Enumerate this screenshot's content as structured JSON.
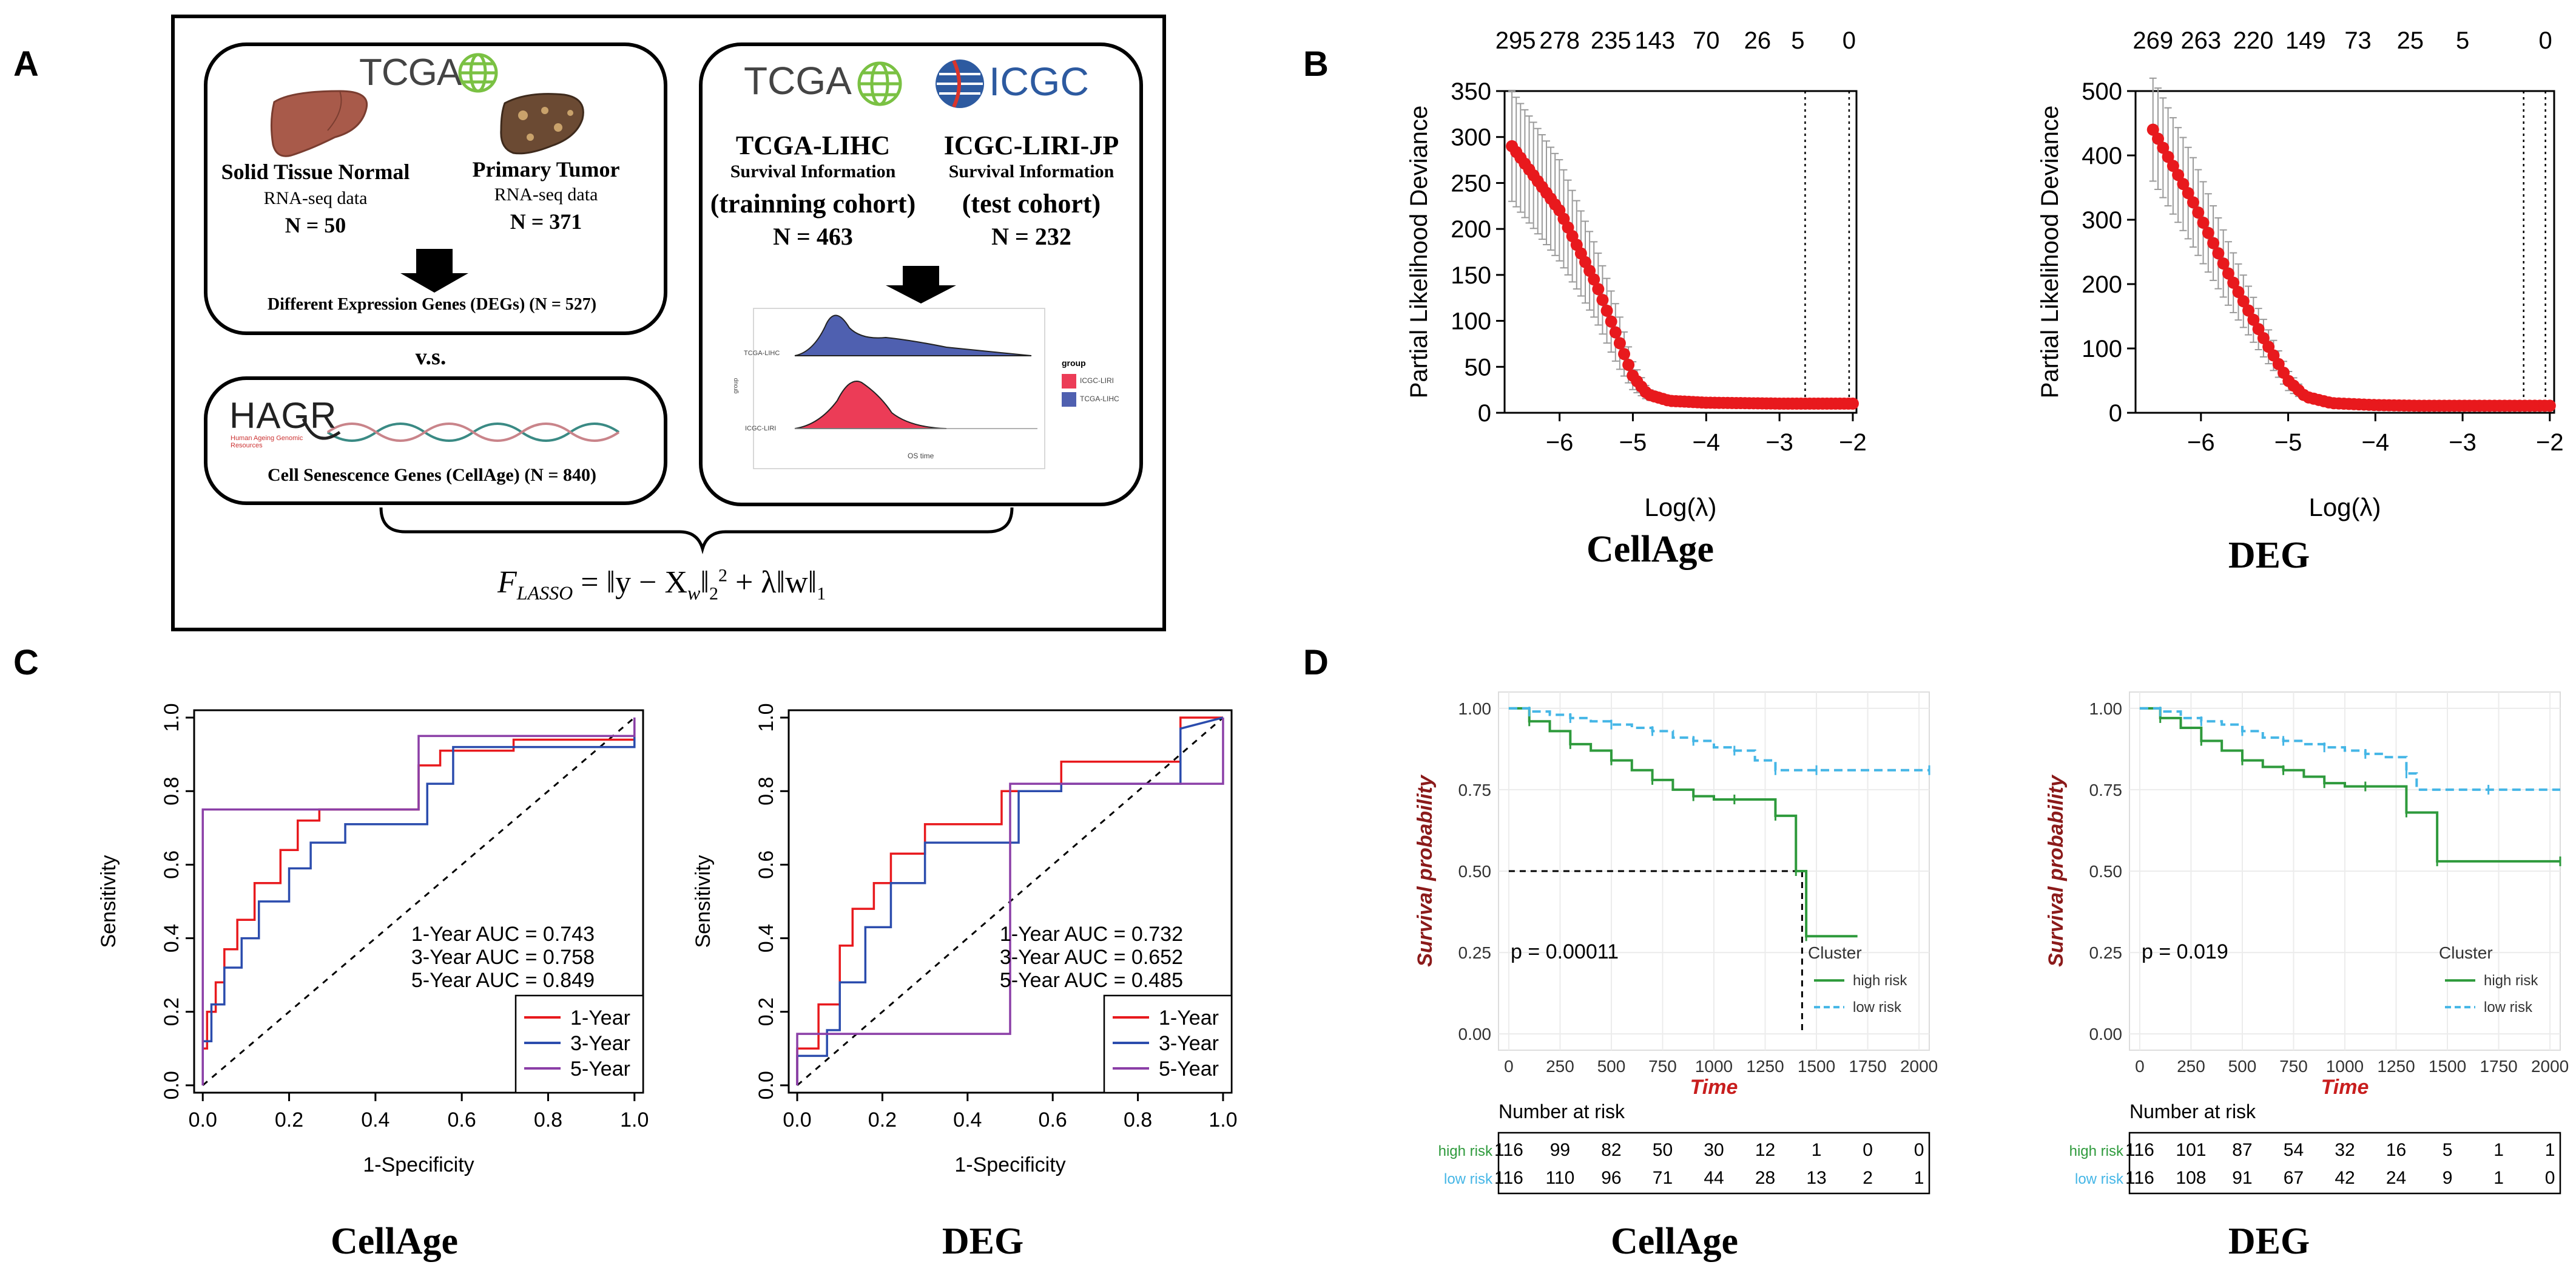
{
  "panel_labels": [
    "A",
    "B",
    "C",
    "D"
  ],
  "panelA": {
    "tcga_logo": "TCGA",
    "icgc_logo": "ICGC",
    "normal_title": "Solid Tissue Normal",
    "normal_sub": "RNA-seq data",
    "normal_n": "N = 50",
    "tumor_title": "Primary Tumor",
    "tumor_sub": "RNA-seq data",
    "tumor_n": "N = 371",
    "degs": "Different Expression Genes (DEGs) (N = 527)",
    "vs": "v.s.",
    "hagr": "HAGR",
    "hagr_sub": "Human Ageing Genomic Resources",
    "cellage": "Cell Senescence Genes (CellAge) (N = 840)",
    "lihc_title": "TCGA-LIHC",
    "lihc_sub": "Survival Information",
    "lihc_cohort": "(trainning cohort)",
    "lihc_n": "N = 463",
    "liri_title": "ICGC-LIRI-JP",
    "liri_sub": "Survival Information",
    "liri_cohort": "(test cohort)",
    "liri_n": "N = 232",
    "density_legend_title": "group",
    "density_legend": [
      "ICGC-LIRI",
      "TCGA-LIHC"
    ],
    "density_ylabels": [
      "TCGA-LIHC",
      "ICGC-LIRI"
    ],
    "density_xlabel": "OS time",
    "density_ylabel": "group",
    "formula_lhs": "F",
    "formula_sub": "LASSO",
    "formula_rhs": "= ‖y − X",
    "formula_w": "w",
    "formula_rest": "‖",
    "formula_sq": "2",
    "formula_tail": "+ λ‖w‖",
    "formula_one": "1"
  },
  "chart_data": [
    {
      "id": "B-CellAge",
      "type": "scatter",
      "title": "CellAge",
      "xlabel": "Log(λ)",
      "ylabel": "Partial Likelihood Deviance",
      "xlim": [
        -6.75,
        -1.95
      ],
      "ylim": [
        0,
        350
      ],
      "xticks": [
        -6,
        -5,
        -4,
        -3,
        -2
      ],
      "yticks": [
        0,
        50,
        100,
        150,
        200,
        250,
        300,
        350
      ],
      "top_axis_positions": [
        -6.6,
        -6.0,
        -5.3,
        -4.7,
        -4.0,
        -3.3,
        -2.75,
        -2.05
      ],
      "top_axis_labels": [
        "295",
        "278",
        "235",
        "143",
        "70",
        "26",
        "5",
        "0"
      ],
      "vlines": [
        -2.65,
        -2.05
      ],
      "curve_x": [
        -6.65,
        -6.0,
        -5.5,
        -5.2,
        -5.0,
        -4.8,
        -4.5,
        -4.0,
        -3.5,
        -3.0,
        -2.5,
        -2.0
      ],
      "curve_y": [
        290,
        220,
        140,
        80,
        40,
        20,
        13,
        11,
        10.5,
        10,
        10,
        10
      ],
      "err_y": [
        60,
        55,
        40,
        30,
        15,
        6,
        3,
        2,
        2,
        2,
        2,
        2
      ],
      "color": "#e8191d"
    },
    {
      "id": "B-DEG",
      "type": "scatter",
      "title": "DEG",
      "xlabel": "Log(λ)",
      "ylabel": "Partial Likelihood Deviance",
      "xlim": [
        -6.75,
        -1.95
      ],
      "ylim": [
        0,
        500
      ],
      "xticks": [
        -6,
        -5,
        -4,
        -3,
        -2
      ],
      "yticks": [
        0,
        100,
        200,
        300,
        400,
        500
      ],
      "top_axis_positions": [
        -6.55,
        -6.0,
        -5.4,
        -4.8,
        -4.2,
        -3.6,
        -3.0,
        -2.05
      ],
      "top_axis_labels": [
        "269",
        "263",
        "220",
        "149",
        "73",
        "25",
        "5",
        "0"
      ],
      "vlines": [
        -2.3,
        -2.05
      ],
      "curve_x": [
        -6.55,
        -6.1,
        -5.7,
        -5.3,
        -5.0,
        -4.8,
        -4.5,
        -4.0,
        -3.5,
        -3.0,
        -2.5,
        -2.0
      ],
      "curve_y": [
        440,
        330,
        220,
        120,
        50,
        25,
        15,
        12,
        11,
        11,
        11,
        11
      ],
      "err_y": [
        80,
        70,
        50,
        30,
        15,
        6,
        3,
        2,
        2,
        2,
        2,
        2
      ],
      "color": "#e8191d"
    },
    {
      "id": "C-CellAge",
      "type": "line",
      "title": "CellAge",
      "xlabel": "1-Specificity",
      "ylabel": "Sensitivity",
      "xlim": [
        0,
        1
      ],
      "ylim": [
        0,
        1
      ],
      "xticks": [
        "0.0",
        "0.2",
        "0.4",
        "0.6",
        "0.8",
        "1.0"
      ],
      "yticks": [
        "0.0",
        "0.2",
        "0.4",
        "0.6",
        "0.8",
        "1.0"
      ],
      "auc_text": [
        "1-Year AUC =  0.743",
        "3-Year AUC =  0.758",
        "5-Year AUC =  0.849"
      ],
      "legend": [
        "1-Year",
        "3-Year",
        "5-Year"
      ],
      "series": [
        {
          "name": "1-Year",
          "color": "#e8191d",
          "x": [
            0,
            0,
            0.01,
            0.01,
            0.03,
            0.03,
            0.05,
            0.05,
            0.08,
            0.08,
            0.12,
            0.12,
            0.18,
            0.18,
            0.22,
            0.22,
            0.27,
            0.27,
            0.5,
            0.5,
            0.55,
            0.55,
            0.72,
            0.72,
            1.0,
            1.0
          ],
          "y": [
            0,
            0.1,
            0.1,
            0.2,
            0.2,
            0.28,
            0.28,
            0.37,
            0.37,
            0.45,
            0.45,
            0.55,
            0.55,
            0.64,
            0.64,
            0.72,
            0.72,
            0.75,
            0.75,
            0.87,
            0.87,
            0.91,
            0.91,
            0.94,
            0.94,
            1.0
          ]
        },
        {
          "name": "3-Year",
          "color": "#2b4cad",
          "x": [
            0,
            0,
            0.02,
            0.02,
            0.05,
            0.05,
            0.09,
            0.09,
            0.13,
            0.13,
            0.2,
            0.2,
            0.25,
            0.25,
            0.33,
            0.33,
            0.52,
            0.52,
            0.58,
            0.58,
            1.0,
            1.0
          ],
          "y": [
            0,
            0.12,
            0.12,
            0.22,
            0.22,
            0.32,
            0.32,
            0.4,
            0.4,
            0.5,
            0.5,
            0.59,
            0.59,
            0.66,
            0.66,
            0.71,
            0.71,
            0.82,
            0.82,
            0.92,
            0.92,
            1.0
          ]
        },
        {
          "name": "5-Year",
          "color": "#8b3fa7",
          "x": [
            0,
            0,
            0.5,
            0.5,
            1.0,
            1.0
          ],
          "y": [
            0,
            0.75,
            0.75,
            0.95,
            0.95,
            1.0
          ]
        }
      ]
    },
    {
      "id": "C-DEG",
      "type": "line",
      "title": "DEG",
      "xlabel": "1-Specificity",
      "ylabel": "Sensitivity",
      "xlim": [
        0,
        1
      ],
      "ylim": [
        0,
        1
      ],
      "xticks": [
        "0.0",
        "0.2",
        "0.4",
        "0.6",
        "0.8",
        "1.0"
      ],
      "yticks": [
        "0.0",
        "0.2",
        "0.4",
        "0.6",
        "0.8",
        "1.0"
      ],
      "auc_text": [
        "1-Year AUC =  0.732",
        "3-Year AUC =  0.652",
        "5-Year AUC =  0.485"
      ],
      "legend": [
        "1-Year",
        "3-Year",
        "5-Year"
      ],
      "series": [
        {
          "name": "1-Year",
          "color": "#e8191d",
          "x": [
            0,
            0,
            0.05,
            0.05,
            0.1,
            0.1,
            0.13,
            0.13,
            0.18,
            0.18,
            0.22,
            0.22,
            0.3,
            0.3,
            0.48,
            0.48,
            0.62,
            0.62,
            0.9,
            0.9,
            1.0
          ],
          "y": [
            0,
            0.1,
            0.1,
            0.22,
            0.22,
            0.38,
            0.38,
            0.48,
            0.48,
            0.55,
            0.55,
            0.63,
            0.63,
            0.71,
            0.71,
            0.8,
            0.8,
            0.88,
            0.88,
            1.0,
            1.0
          ]
        },
        {
          "name": "3-Year",
          "color": "#2b4cad",
          "x": [
            0,
            0,
            0.07,
            0.07,
            0.1,
            0.1,
            0.16,
            0.16,
            0.22,
            0.22,
            0.3,
            0.3,
            0.52,
            0.52,
            0.62,
            0.62,
            0.9,
            0.9,
            1.0
          ],
          "y": [
            0,
            0.08,
            0.08,
            0.15,
            0.15,
            0.28,
            0.28,
            0.43,
            0.43,
            0.55,
            0.55,
            0.66,
            0.66,
            0.8,
            0.8,
            0.82,
            0.82,
            0.97,
            1.0
          ]
        },
        {
          "name": "5-Year",
          "color": "#8b3fa7",
          "x": [
            0,
            0,
            0.5,
            0.5,
            1.0,
            1.0
          ],
          "y": [
            0,
            0.14,
            0.14,
            0.82,
            0.82,
            1.0
          ]
        }
      ]
    },
    {
      "id": "D-CellAge",
      "type": "line",
      "title": "CellAge",
      "xlabel": "Time",
      "ylabel": "Survival probability",
      "xlim": [
        -50,
        2050
      ],
      "ylim": [
        0,
        1
      ],
      "xticks": [
        "0",
        "250",
        "500",
        "750",
        "1000",
        "1250",
        "1500",
        "1750",
        "2000"
      ],
      "yticks": [
        "0.00",
        "0.25",
        "0.50",
        "0.75",
        "1.00"
      ],
      "pvalue": "p = 0.00011",
      "legend_title": "Cluster",
      "legend": [
        "high risk",
        "low risk"
      ],
      "median_line": {
        "x": 1430,
        "y": 0.5
      },
      "series": [
        {
          "name": "high risk",
          "color": "#2e9a3c",
          "dashed": false,
          "x": [
            0,
            100,
            200,
            300,
            400,
            500,
            600,
            700,
            800,
            900,
            1000,
            1100,
            1200,
            1300,
            1350,
            1400,
            1430,
            1450,
            1700
          ],
          "y": [
            1.0,
            0.96,
            0.93,
            0.89,
            0.87,
            0.84,
            0.81,
            0.78,
            0.75,
            0.73,
            0.72,
            0.72,
            0.72,
            0.67,
            0.67,
            0.5,
            0.5,
            0.3,
            0.3
          ]
        },
        {
          "name": "low risk",
          "color": "#45b6e6",
          "dashed": true,
          "x": [
            0,
            100,
            200,
            300,
            400,
            500,
            600,
            700,
            800,
            900,
            1000,
            1100,
            1200,
            1300,
            1400,
            1500,
            1700,
            2050
          ],
          "y": [
            1.0,
            0.99,
            0.98,
            0.97,
            0.96,
            0.95,
            0.94,
            0.93,
            0.91,
            0.9,
            0.88,
            0.87,
            0.84,
            0.81,
            0.81,
            0.81,
            0.81,
            0.81
          ]
        }
      ],
      "risk_table_title": "Number at risk",
      "risk_rows": [
        {
          "label": "high risk",
          "color": "#2e9a3c",
          "values": [
            "116",
            "99",
            "82",
            "50",
            "30",
            "12",
            "1",
            "0",
            "0"
          ]
        },
        {
          "label": "low risk",
          "color": "#45b6e6",
          "values": [
            "116",
            "110",
            "96",
            "71",
            "44",
            "28",
            "13",
            "2",
            "1"
          ]
        }
      ]
    },
    {
      "id": "D-DEG",
      "type": "line",
      "title": "DEG",
      "xlabel": "Time",
      "ylabel": "Survival probability",
      "xlim": [
        -50,
        2050
      ],
      "ylim": [
        0,
        1
      ],
      "xticks": [
        "0",
        "250",
        "500",
        "750",
        "1000",
        "1250",
        "1500",
        "1750",
        "2000"
      ],
      "yticks": [
        "0.00",
        "0.25",
        "0.50",
        "0.75",
        "1.00"
      ],
      "pvalue": "p = 0.019",
      "legend_title": "Cluster",
      "legend": [
        "high risk",
        "low risk"
      ],
      "series": [
        {
          "name": "high risk",
          "color": "#2e9a3c",
          "dashed": false,
          "x": [
            0,
            100,
            200,
            300,
            400,
            500,
            600,
            700,
            800,
            900,
            1000,
            1100,
            1200,
            1300,
            1400,
            1450,
            1700,
            2050
          ],
          "y": [
            1.0,
            0.97,
            0.94,
            0.9,
            0.87,
            0.84,
            0.82,
            0.81,
            0.79,
            0.77,
            0.76,
            0.76,
            0.76,
            0.68,
            0.68,
            0.53,
            0.53,
            0.53
          ]
        },
        {
          "name": "low risk",
          "color": "#45b6e6",
          "dashed": true,
          "x": [
            0,
            100,
            200,
            300,
            400,
            500,
            600,
            700,
            800,
            900,
            1000,
            1100,
            1200,
            1300,
            1350,
            1700,
            2050
          ],
          "y": [
            1.0,
            0.99,
            0.97,
            0.96,
            0.95,
            0.93,
            0.91,
            0.9,
            0.89,
            0.88,
            0.87,
            0.86,
            0.85,
            0.8,
            0.75,
            0.75,
            0.75
          ]
        }
      ],
      "risk_table_title": "Number at risk",
      "risk_rows": [
        {
          "label": "high risk",
          "color": "#2e9a3c",
          "values": [
            "116",
            "101",
            "87",
            "54",
            "32",
            "16",
            "5",
            "1",
            "1"
          ]
        },
        {
          "label": "low risk",
          "color": "#45b6e6",
          "values": [
            "116",
            "108",
            "91",
            "67",
            "42",
            "24",
            "9",
            "1",
            "0"
          ]
        }
      ]
    }
  ]
}
